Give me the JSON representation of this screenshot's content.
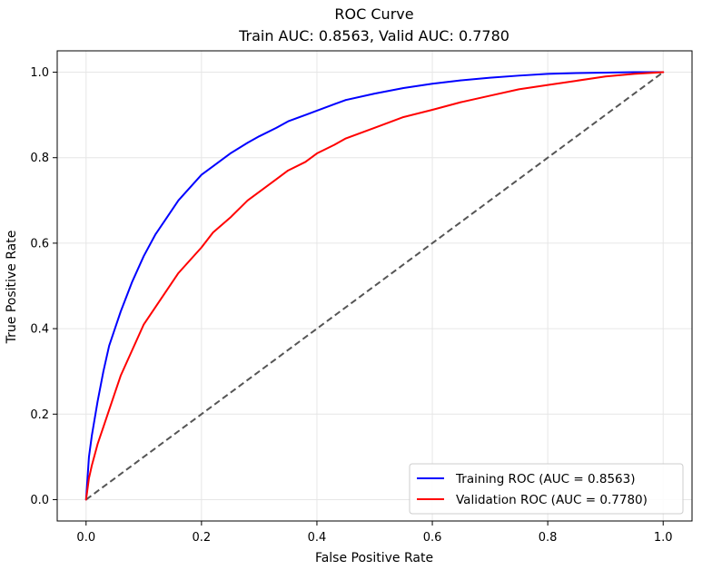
{
  "chart_data": {
    "type": "line",
    "title": "ROC Curve",
    "subtitle": "Train AUC: 0.8563, Valid AUC: 0.7780",
    "xlabel": "False Positive Rate",
    "ylabel": "True Positive Rate",
    "xlim": [
      -0.05,
      1.05
    ],
    "ylim": [
      -0.05,
      1.05
    ],
    "xticks": [
      "0.0",
      "0.2",
      "0.4",
      "0.6",
      "0.8",
      "1.0"
    ],
    "yticks": [
      "0.0",
      "0.2",
      "0.4",
      "0.6",
      "0.8",
      "1.0"
    ],
    "grid": true,
    "legend_position": "lower-right",
    "series": [
      {
        "name": "Training ROC (AUC = 0.8563)",
        "color": "#0000ff",
        "style": "solid",
        "x": [
          0,
          0.005,
          0.01,
          0.02,
          0.03,
          0.04,
          0.05,
          0.06,
          0.08,
          0.1,
          0.12,
          0.14,
          0.16,
          0.18,
          0.2,
          0.22,
          0.25,
          0.28,
          0.3,
          0.33,
          0.35,
          0.38,
          0.4,
          0.43,
          0.45,
          0.5,
          0.55,
          0.6,
          0.65,
          0.7,
          0.75,
          0.8,
          0.85,
          0.9,
          0.95,
          1.0
        ],
        "y": [
          0,
          0.1,
          0.15,
          0.23,
          0.3,
          0.36,
          0.4,
          0.44,
          0.51,
          0.57,
          0.62,
          0.66,
          0.7,
          0.73,
          0.76,
          0.78,
          0.81,
          0.835,
          0.85,
          0.87,
          0.885,
          0.9,
          0.91,
          0.925,
          0.935,
          0.95,
          0.963,
          0.973,
          0.981,
          0.987,
          0.992,
          0.996,
          0.998,
          0.999,
          1.0,
          1.0
        ]
      },
      {
        "name": "Validation ROC (AUC = 0.7780)",
        "color": "#ff0000",
        "style": "solid",
        "x": [
          0,
          0.005,
          0.01,
          0.02,
          0.03,
          0.04,
          0.05,
          0.06,
          0.08,
          0.1,
          0.12,
          0.14,
          0.16,
          0.18,
          0.2,
          0.22,
          0.25,
          0.28,
          0.3,
          0.33,
          0.35,
          0.38,
          0.4,
          0.43,
          0.45,
          0.5,
          0.55,
          0.6,
          0.65,
          0.7,
          0.75,
          0.8,
          0.85,
          0.9,
          0.95,
          1.0
        ],
        "y": [
          0,
          0.05,
          0.08,
          0.13,
          0.17,
          0.21,
          0.25,
          0.29,
          0.35,
          0.41,
          0.45,
          0.49,
          0.53,
          0.56,
          0.59,
          0.625,
          0.66,
          0.7,
          0.72,
          0.75,
          0.77,
          0.79,
          0.81,
          0.83,
          0.845,
          0.87,
          0.895,
          0.912,
          0.93,
          0.945,
          0.96,
          0.97,
          0.98,
          0.99,
          0.996,
          1.0
        ]
      },
      {
        "color": "#555555",
        "style": "dashed",
        "x": [
          0,
          1
        ],
        "y": [
          0,
          1
        ]
      }
    ]
  }
}
